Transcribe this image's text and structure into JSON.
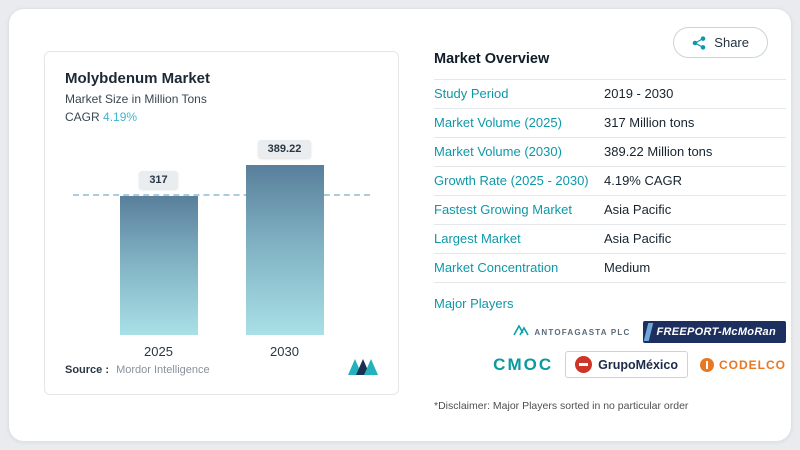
{
  "window": {
    "share_label": "Share"
  },
  "chart_card": {
    "title": "Molybdenum Market",
    "subtitle": "Market Size in Million Tons",
    "cagr_label": "CAGR",
    "cagr_value": "4.19%",
    "source_label": "Source :",
    "source_value": "Mordor Intelligence"
  },
  "chart_data": {
    "type": "bar",
    "title": "Molybdenum Market",
    "subtitle": "Market Size in Million Tons",
    "unit": "Million Tons",
    "categories": [
      "2025",
      "2030"
    ],
    "values": [
      317,
      389.22
    ],
    "bar_labels": [
      "317",
      "389.22"
    ],
    "ylim": [
      0,
      450
    ],
    "reference_line": 317,
    "grid": "off",
    "legend": "none",
    "bar_gradient_top": "#597f9b",
    "bar_gradient_bottom": "#a9e0e6"
  },
  "overview": {
    "heading": "Market Overview",
    "rows": [
      {
        "label": "Study Period",
        "value": "2019 - 2030"
      },
      {
        "label": "Market Volume (2025)",
        "value": "317 Million tons"
      },
      {
        "label": "Market Volume (2030)",
        "value": "389.22 Million tons"
      },
      {
        "label": "Growth Rate (2025 - 2030)",
        "value": "4.19% CAGR"
      },
      {
        "label": "Fastest Growing Market",
        "value": "Asia Pacific"
      },
      {
        "label": "Largest Market",
        "value": "Asia Pacific"
      },
      {
        "label": "Market Concentration",
        "value": "Medium"
      }
    ],
    "major_players_label": "Major Players",
    "players": {
      "antofagasta": "ANTOFAGASTA PLC",
      "freeport": "FREEPORT-McMoRan",
      "cmoc": "CMOC",
      "grupomexico": "GrupoMéxico",
      "codelco": "CODELCO"
    },
    "disclaimer": "*Disclaimer: Major Players sorted in no particular order"
  },
  "colors": {
    "accent_teal": "#0d98a8",
    "cagr_blue": "#3eb5d0",
    "freeport_navy": "#1c2f5f",
    "codelco_orange": "#e87722",
    "grupomexico_red": "#cd3527",
    "text_dark": "#17242f"
  }
}
